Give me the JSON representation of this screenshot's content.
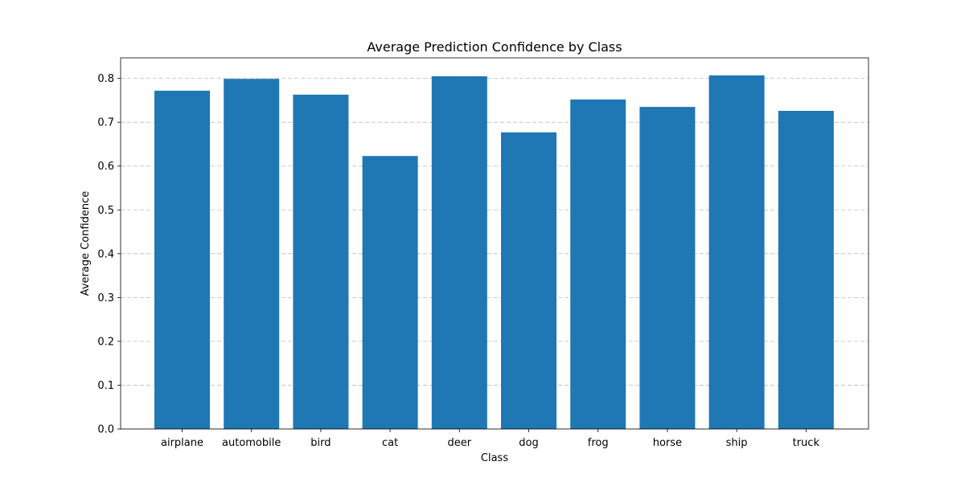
{
  "chart_data": {
    "type": "bar",
    "title": "Average Prediction Confidence by Class",
    "xlabel": "Class",
    "ylabel": "Average Confidence",
    "categories": [
      "airplane",
      "automobile",
      "bird",
      "cat",
      "deer",
      "dog",
      "frog",
      "horse",
      "ship",
      "truck"
    ],
    "values": [
      0.772,
      0.799,
      0.763,
      0.623,
      0.805,
      0.677,
      0.752,
      0.735,
      0.807,
      0.726
    ],
    "ylim": [
      0,
      0.847
    ],
    "yticks": [
      0.0,
      0.1,
      0.2,
      0.3,
      0.4,
      0.5,
      0.6,
      0.7,
      0.8
    ],
    "ytick_labels": [
      "0.0",
      "0.1",
      "0.2",
      "0.3",
      "0.4",
      "0.5",
      "0.6",
      "0.7",
      "0.8"
    ],
    "grid": "y-dashed",
    "bar_color": "#1f77b4",
    "grid_color": "#b0b0b0"
  }
}
